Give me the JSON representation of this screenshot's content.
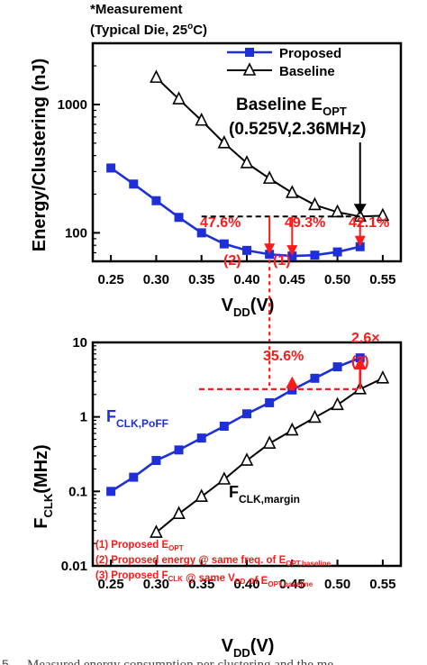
{
  "colors": {
    "proposed": "#1f2fd8",
    "baseline": "#000000",
    "annotation": "#ff1a1a"
  },
  "header": {
    "line1": "*Measurement",
    "line2_pre": "(Typical Die, 25",
    "line2_deg": "o",
    "line2_post": "C)"
  },
  "caption": "Measured energy consumption per clustering and the me",
  "caption_prefix": "5",
  "chart_data": [
    {
      "type": "line",
      "ylabel": "Energy/Clustering (nJ)",
      "xlabel_main": "V",
      "xlabel_sub": "DD",
      "xlabel_unit": "(V)",
      "xlim": [
        0.23,
        0.57
      ],
      "ylim": [
        60,
        3000
      ],
      "yscale": "log",
      "x_ticks": [
        "0.25",
        "0.30",
        "0.35",
        "0.40",
        "0.45",
        "0.50",
        "0.55"
      ],
      "y_ticks": [
        "100",
        "1000"
      ],
      "legend_position": "top-right",
      "series": [
        {
          "name": "Proposed",
          "marker": "square",
          "x": [
            0.25,
            0.275,
            0.3,
            0.325,
            0.35,
            0.375,
            0.4,
            0.425,
            0.45,
            0.475,
            0.5,
            0.525
          ],
          "y": [
            320,
            240,
            178,
            132,
            100,
            82,
            73,
            68,
            66,
            67,
            71,
            78
          ]
        },
        {
          "name": "Baseline",
          "marker": "triangle-open",
          "x": [
            0.3,
            0.325,
            0.35,
            0.375,
            0.4,
            0.425,
            0.45,
            0.475,
            0.5,
            0.525,
            0.55
          ],
          "y": [
            1620,
            1100,
            750,
            500,
            350,
            265,
            205,
            165,
            145,
            134,
            136
          ]
        }
      ],
      "annotations": {
        "eopt_title_main": "Baseline E",
        "eopt_title_sub": "OPT",
        "eopt_coords": "(0.525V,2.36MHz)",
        "pct1": "47.6%",
        "pct2": "49.3%",
        "pct3": "42.1%",
        "mark1": "(1)",
        "mark2": "(2)"
      }
    },
    {
      "type": "line",
      "ylabel_main": "F",
      "ylabel_sub": "CLK",
      "ylabel_unit": "(MHz)",
      "xlabel_main": "V",
      "xlabel_sub": "DD",
      "xlabel_unit": "(V)",
      "xlim": [
        0.23,
        0.57
      ],
      "ylim": [
        0.01,
        10
      ],
      "yscale": "log",
      "x_ticks": [
        "0.25",
        "0.30",
        "0.35",
        "0.40",
        "0.45",
        "0.50",
        "0.55"
      ],
      "y_ticks": [
        "0.01",
        "0.1",
        "1",
        "10"
      ],
      "series": [
        {
          "label_main": "F",
          "label_sub": "CLK,PoFF",
          "marker": "square",
          "x": [
            0.25,
            0.275,
            0.3,
            0.325,
            0.35,
            0.375,
            0.4,
            0.425,
            0.45,
            0.475,
            0.5,
            0.525
          ],
          "y": [
            0.1,
            0.155,
            0.26,
            0.36,
            0.52,
            0.75,
            1.1,
            1.55,
            2.3,
            3.3,
            4.7,
            6.2
          ]
        },
        {
          "label_main": "F",
          "label_sub": "CLK,margin",
          "marker": "triangle-open",
          "x": [
            0.3,
            0.325,
            0.35,
            0.375,
            0.4,
            0.425,
            0.45,
            0.475,
            0.5,
            0.525,
            0.55
          ],
          "y": [
            0.028,
            0.05,
            0.085,
            0.145,
            0.26,
            0.44,
            0.66,
            0.98,
            1.45,
            2.36,
            3.3
          ]
        }
      ],
      "annotations": {
        "pct": "35.6%",
        "mult": "2.6×",
        "mark3": "(3)"
      },
      "legend_notes": [
        {
          "parts": [
            {
              "t": "(1) Proposed E"
            },
            {
              "t": "OPT",
              "sub": true
            }
          ]
        },
        {
          "parts": [
            {
              "t": "(2) Proposed energy @ same freq. of E"
            },
            {
              "t": "OPT,baseline",
              "sub": true
            }
          ]
        },
        {
          "parts": [
            {
              "t": "(3) Proposed F"
            },
            {
              "t": "CLK",
              "sub": true
            },
            {
              "t": " @ same V"
            },
            {
              "t": "DD",
              "sub": true
            },
            {
              "t": " of E"
            },
            {
              "t": "OPT,baseline",
              "sub": true
            }
          ]
        }
      ]
    }
  ]
}
